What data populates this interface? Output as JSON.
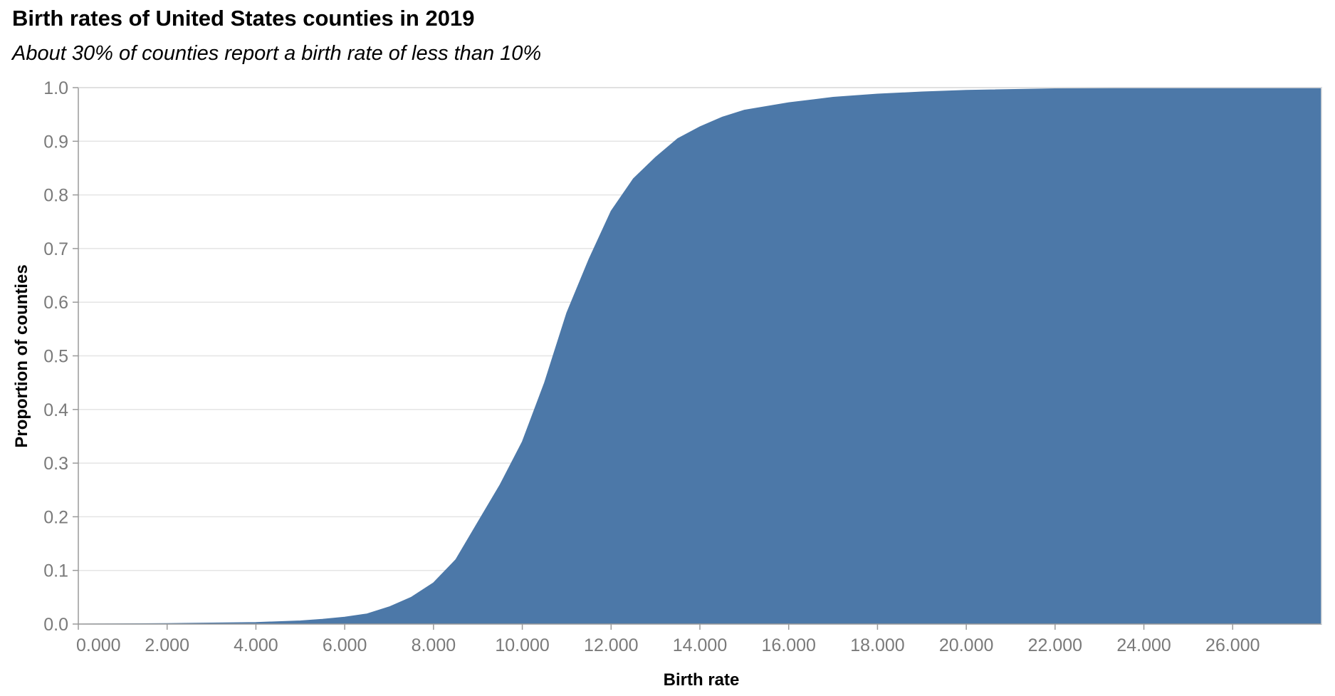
{
  "chart_data": {
    "type": "area",
    "title": "Birth rates of United States counties in 2019",
    "subtitle": "About 30% of counties report a birth rate of less than 10%",
    "xlabel": "Birth rate",
    "ylabel": "Proportion of counties",
    "xlim": [
      0,
      28
    ],
    "ylim": [
      0,
      1
    ],
    "x_ticks": [
      0,
      2,
      4,
      6,
      8,
      10,
      12,
      14,
      16,
      18,
      20,
      22,
      24,
      26
    ],
    "x_tick_labels": [
      "0.000",
      "2.000",
      "4.000",
      "6.000",
      "8.000",
      "10.000",
      "12.000",
      "14.000",
      "16.000",
      "18.000",
      "20.000",
      "22.000",
      "24.000",
      "26.000"
    ],
    "y_ticks": [
      0,
      0.1,
      0.2,
      0.3,
      0.4,
      0.5,
      0.6,
      0.7,
      0.8,
      0.9,
      1.0
    ],
    "y_tick_labels": [
      "0.0",
      "0.1",
      "0.2",
      "0.3",
      "0.4",
      "0.5",
      "0.6",
      "0.7",
      "0.8",
      "0.9",
      "1.0"
    ],
    "grid": true,
    "fill_color": "#4c78a8",
    "series": [
      {
        "x": [
          0,
          1,
          2,
          3,
          4,
          5,
          5.5,
          6,
          6.5,
          7,
          7.5,
          8,
          8.5,
          9,
          9.5,
          10,
          10.5,
          11,
          11.5,
          12,
          12.5,
          13,
          13.5,
          14,
          14.5,
          15,
          16,
          17,
          18,
          19,
          20,
          22,
          24,
          26,
          28
        ],
        "y": [
          0,
          0.0005,
          0.001,
          0.002,
          0.003,
          0.006,
          0.009,
          0.013,
          0.019,
          0.032,
          0.05,
          0.077,
          0.12,
          0.19,
          0.26,
          0.34,
          0.45,
          0.58,
          0.68,
          0.77,
          0.83,
          0.87,
          0.905,
          0.927,
          0.945,
          0.958,
          0.972,
          0.982,
          0.988,
          0.992,
          0.995,
          0.998,
          0.999,
          1.0,
          1.0
        ]
      }
    ]
  }
}
